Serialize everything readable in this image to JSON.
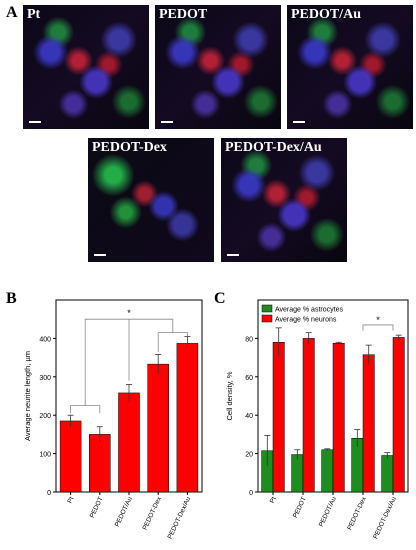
{
  "panel_a": {
    "letter": "A",
    "images": [
      {
        "label": "Pt"
      },
      {
        "label": "PEDOT"
      },
      {
        "label": "PEDOT/Au"
      },
      {
        "label": "PEDOT-Dex"
      },
      {
        "label": "PEDOT-Dex/Au"
      }
    ]
  },
  "colors": {
    "bar_red": "#ff0000",
    "bar_green": "#1e8c1e",
    "frame": "#000000"
  },
  "chart_data": [
    {
      "panel": "B",
      "type": "bar",
      "categories": [
        "Pt",
        "PEDOT",
        "PEDOT/Au",
        "PEDOT-Dex",
        "PEDOT-Dex/Au"
      ],
      "series": [
        {
          "values": [
            185,
            150,
            258,
            333,
            387
          ],
          "errors": [
            15,
            20,
            22,
            25,
            18
          ],
          "color": "#ff0000"
        }
      ],
      "ylabel": "Average neurite length, µm",
      "ylim": [
        0,
        500
      ],
      "yticks": [
        0,
        100,
        200,
        300,
        400
      ],
      "significance": "*"
    },
    {
      "panel": "C",
      "type": "bar",
      "categories": [
        "Pt",
        "PEDOT",
        "PEDOT/Au",
        "PEDOT-Dex",
        "PEDOT-Dex/Au"
      ],
      "series": [
        {
          "name": "Average % astrocytes",
          "values": [
            21.5,
            19.5,
            22,
            28,
            19
          ],
          "errors": [
            8,
            2.5,
            0.5,
            4.5,
            1.5
          ],
          "color": "#1e8c1e"
        },
        {
          "name": "Average % neurons",
          "values": [
            78,
            80,
            77.5,
            71.5,
            80.5
          ],
          "errors": [
            7.5,
            3,
            0.5,
            5,
            1.2
          ],
          "color": "#ff0000"
        }
      ],
      "ylabel": "Cell density, %",
      "ylim": [
        0,
        100
      ],
      "yticks": [
        0,
        20,
        40,
        60,
        80
      ],
      "legend": "top-left",
      "significance": "*"
    }
  ]
}
